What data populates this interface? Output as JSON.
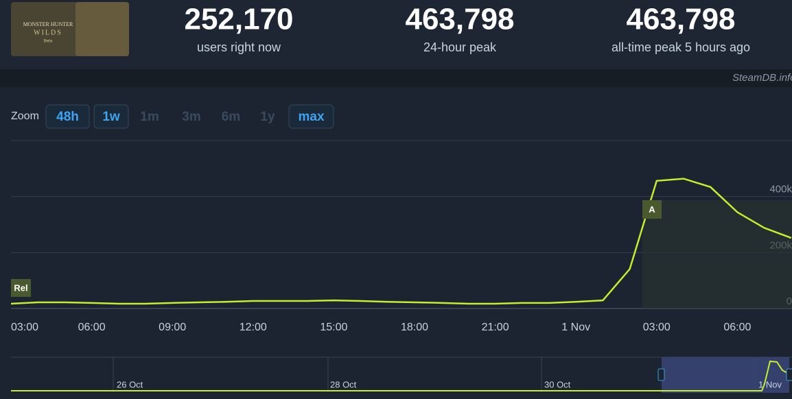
{
  "header": {
    "logo": {
      "title": "MONSTER HUNTER",
      "subtitle": "WILDS",
      "tag": "Beta"
    },
    "stats": [
      {
        "value": "252,170",
        "label": "users right now"
      },
      {
        "value": "463,798",
        "label": "24-hour peak"
      },
      {
        "value": "463,798",
        "label": "all-time peak 5 hours ago"
      }
    ]
  },
  "watermark": "SteamDB.info",
  "zoom": {
    "label": "Zoom",
    "buttons": [
      {
        "text": "48h",
        "active": true
      },
      {
        "text": "1w",
        "active": true
      },
      {
        "text": "1m",
        "active": false
      },
      {
        "text": "3m",
        "active": false
      },
      {
        "text": "6m",
        "active": false
      },
      {
        "text": "1y",
        "active": false
      },
      {
        "text": "max",
        "active": true
      }
    ]
  },
  "chart_data": {
    "type": "line",
    "categories": [
      "03:00",
      null,
      null,
      "06:00",
      null,
      null,
      "09:00",
      null,
      null,
      "12:00",
      null,
      null,
      "15:00",
      null,
      null,
      "18:00",
      null,
      null,
      "21:00",
      null,
      null,
      "1 Nov",
      null,
      null,
      "03:00",
      null,
      null,
      "06:00",
      null,
      null
    ],
    "values": [
      17000,
      22000,
      22000,
      20000,
      17000,
      17000,
      20000,
      22000,
      24000,
      27000,
      27000,
      27000,
      29000,
      27000,
      24000,
      22000,
      20000,
      17000,
      17000,
      20000,
      20000,
      24000,
      29000,
      141000,
      456000,
      463798,
      434000,
      344000,
      288000,
      252170
    ],
    "color": "#c5ee2c",
    "ylim": [
      0,
      600000
    ],
    "yticks": [
      0,
      {
        "value": 200000,
        "label": "200k"
      },
      {
        "value": 400000,
        "label": "400k"
      }
    ],
    "grid": true,
    "annotations": [
      "Rel",
      "A"
    ]
  },
  "navigator": {
    "labels": [
      "26 Oct",
      "28 Oct",
      "30 Oct",
      "1 Nov"
    ]
  }
}
